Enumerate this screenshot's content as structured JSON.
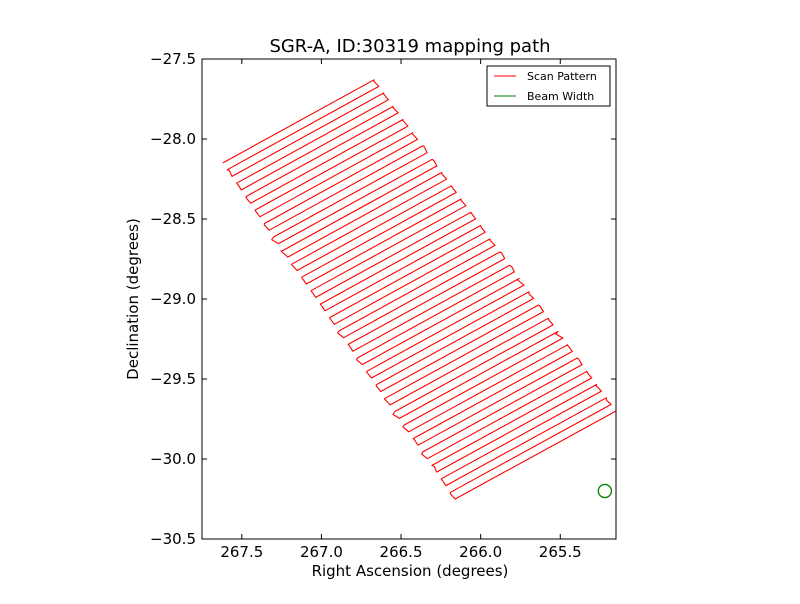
{
  "chart_data": {
    "type": "line",
    "title": "SGR-A, ID:30319 mapping path",
    "xlabel": "Right Ascension (degrees)",
    "ylabel": "Declination (degrees)",
    "xlim": [
      267.75,
      265.15
    ],
    "ylim": [
      -30.5,
      -27.5
    ],
    "x_axis_inverted": true,
    "xticks": [
      267.5,
      267.0,
      266.5,
      266.0,
      265.5
    ],
    "xtick_labels": [
      "267.5",
      "267.0",
      "266.5",
      "266.0",
      "265.5"
    ],
    "yticks": [
      -27.5,
      -28.0,
      -28.5,
      -29.0,
      -29.5,
      -30.0,
      -30.5
    ],
    "ytick_labels": [
      "−27.5",
      "−28.0",
      "−28.5",
      "−29.0",
      "−29.5",
      "−30.0",
      "−30.5"
    ],
    "grid": false,
    "legend_position": "top-right",
    "series": [
      {
        "name": "Scan Pattern",
        "color": "#ff0000",
        "kind": "raster-scan",
        "num_legs": 51,
        "first_leg": {
          "start": [
            267.62,
            -28.15
          ],
          "end": [
            266.67,
            -27.63
          ]
        },
        "last_leg": {
          "start": [
            266.16,
            -30.25
          ],
          "end": [
            265.15,
            -29.7
          ]
        },
        "turn_jitter_deg": 0.03
      },
      {
        "name": "Beam Width",
        "color": "#008000",
        "kind": "circle",
        "center": [
          265.22,
          -30.2
        ],
        "radius_deg": 0.055
      }
    ]
  }
}
